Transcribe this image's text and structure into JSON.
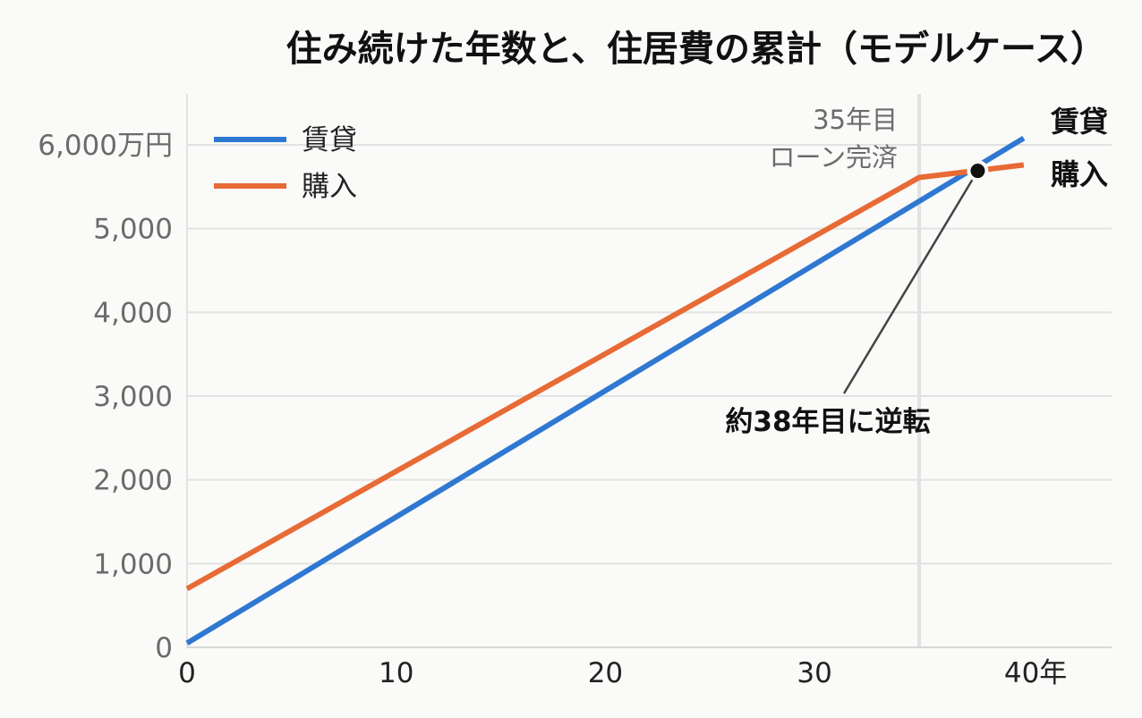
{
  "colors": {
    "rent": "#2f78d2",
    "buy": "#e86a35",
    "grid": "#e2e2e2",
    "bg": "#fafaf8"
  },
  "chart_data": {
    "type": "line",
    "title": "住み続けた年数と、住居費の累計（モデルケース）",
    "xlabel": "",
    "ylabel": "",
    "xlim": [
      0,
      44
    ],
    "ylim": [
      0,
      6300
    ],
    "x_ticks": [
      {
        "value": 0,
        "label": "0"
      },
      {
        "value": 10,
        "label": "10"
      },
      {
        "value": 20,
        "label": "20"
      },
      {
        "value": 30,
        "label": "30"
      },
      {
        "value": 40,
        "label": "40年"
      }
    ],
    "y_ticks": [
      {
        "value": 0,
        "label": "0"
      },
      {
        "value": 1000,
        "label": "1,000"
      },
      {
        "value": 2000,
        "label": "2,000"
      },
      {
        "value": 3000,
        "label": "3,000"
      },
      {
        "value": 4000,
        "label": "4,000"
      },
      {
        "value": 5000,
        "label": "5,000"
      },
      {
        "value": 6000,
        "label": "6,000万円"
      }
    ],
    "grid": "horizontal",
    "legend_position": "top-left",
    "series": [
      {
        "name": "賃貸",
        "color": "#2f78d2",
        "points": [
          [
            0,
            50
          ],
          [
            40,
            6080
          ]
        ]
      },
      {
        "name": "購入",
        "color": "#e86a35",
        "points": [
          [
            0,
            700
          ],
          [
            35,
            5610
          ],
          [
            40,
            5760
          ]
        ]
      }
    ],
    "reference_line": {
      "x": 35,
      "label_lines": [
        "35年目",
        "ローン完済"
      ]
    },
    "crossover": {
      "x": 37.8,
      "y": 5690,
      "label": "約38年目に逆転"
    },
    "end_labels": [
      "賃貸",
      "購入"
    ]
  }
}
